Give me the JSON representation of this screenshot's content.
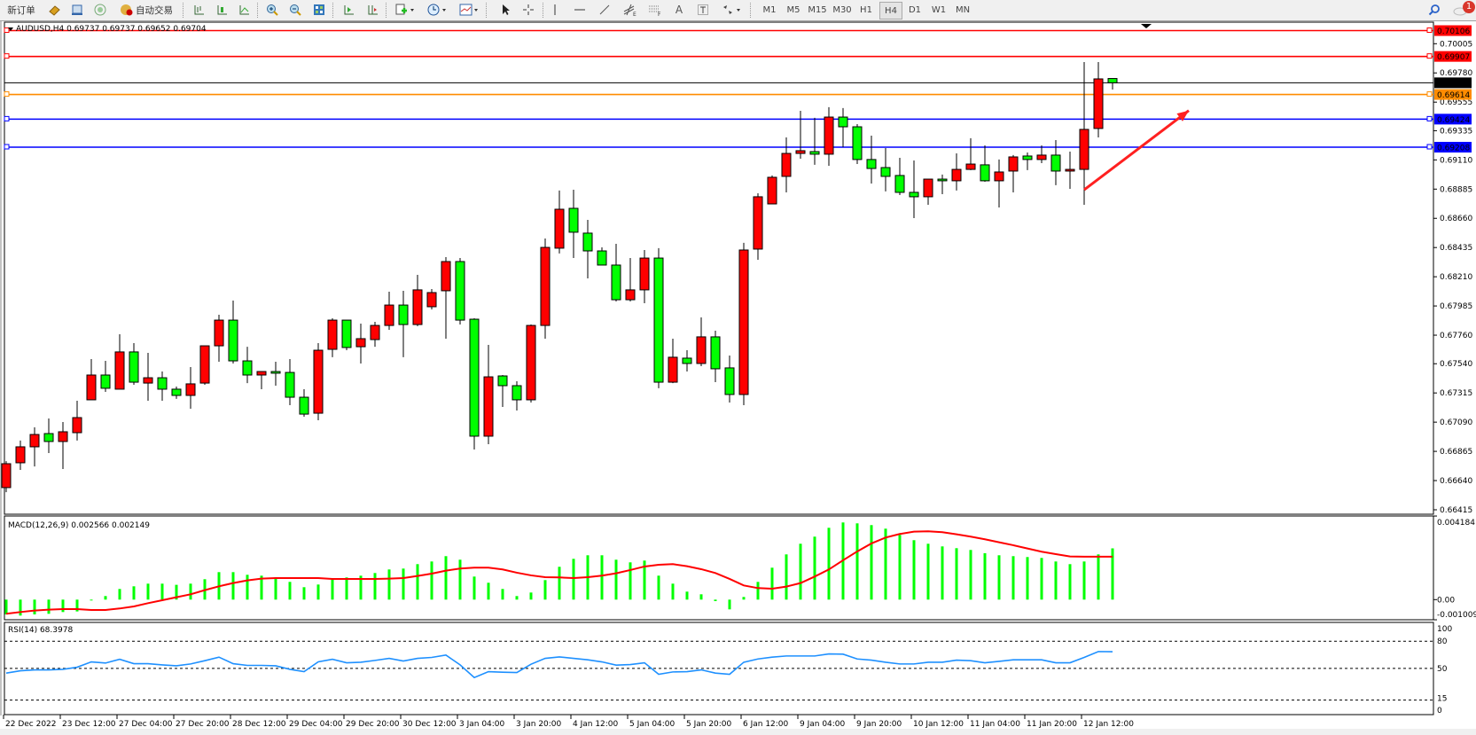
{
  "toolbar": {
    "new_order": "新订单",
    "auto_trading": "自动交易",
    "periods": [
      "M1",
      "M5",
      "M15",
      "M30",
      "H1",
      "H4",
      "D1",
      "W1",
      "MN"
    ],
    "active_period": "H4",
    "notification_count": "1",
    "icons": [
      "new-order-icon",
      "gold-icon",
      "market-watch-icon",
      "signal-icon",
      "auto-trading-icon",
      "bar-chart-icon",
      "candlestick-icon",
      "line-chart-icon",
      "zoom-in-icon",
      "zoom-out-icon",
      "tile-windows-icon",
      "autoscroll-icon",
      "chart-shift-icon",
      "template-icon",
      "clock-icon",
      "indicators-icon",
      "cursor-icon",
      "crosshair-icon",
      "vertical-line-icon",
      "horizontal-line-icon",
      "trendline-icon",
      "fibo-expansion-icon",
      "fibo-fan-icon",
      "text-icon",
      "text-label-icon",
      "arrows-icon",
      "search-icon",
      "notification-icon"
    ]
  },
  "chart_header": "AUDUSD,H4  0.69737 0.69737 0.69652 0.69704",
  "colors": {
    "bull": "#ff0000",
    "bear": "#00ff00",
    "macd_hist": "#00ff00",
    "macd_signal": "#ff0000",
    "rsi": "#1e90ff",
    "orange_line": "#ff8c00",
    "blue_line": "#0000ff",
    "red_line": "#ff0000"
  },
  "chart_data": [
    {
      "type": "candlestick",
      "symbol": "AUDUSD",
      "timeframe": "H4",
      "ylim": [
        0.66415,
        0.7018
      ],
      "y_ticks": [
        "0.70005",
        "0.69780",
        "0.69555",
        "0.69335",
        "0.69110",
        "0.68885",
        "0.68660",
        "0.68435",
        "0.68210",
        "0.67985",
        "0.67760",
        "0.67540",
        "0.67315",
        "0.67090",
        "0.66865",
        "0.66640",
        "0.66415"
      ],
      "x_tick_labels": [
        "22 Dec 2022",
        "23 Dec 12:00",
        "27 Dec 04:00",
        "27 Dec 20:00",
        "28 Dec 12:00",
        "29 Dec 04:00",
        "29 Dec 20:00",
        "30 Dec 12:00",
        "3 Jan 04:00",
        "3 Jan 20:00",
        "4 Jan 12:00",
        "5 Jan 04:00",
        "5 Jan 20:00",
        "6 Jan 12:00",
        "9 Jan 04:00",
        "9 Jan 20:00",
        "10 Jan 12:00",
        "11 Jan 04:00",
        "11 Jan 20:00",
        "12 Jan 12:00"
      ],
      "ohlc": [
        [
          0.66586,
          0.6679,
          0.66551,
          0.6677
        ],
        [
          0.66777,
          0.66948,
          0.66722,
          0.669
        ],
        [
          0.669,
          0.6705,
          0.66749,
          0.66995
        ],
        [
          0.67002,
          0.67118,
          0.66852,
          0.66941
        ],
        [
          0.66941,
          0.67091,
          0.66729,
          0.67016
        ],
        [
          0.67009,
          0.67255,
          0.66948,
          0.67125
        ],
        [
          0.67262,
          0.67576,
          0.67262,
          0.67453
        ],
        [
          0.67453,
          0.67562,
          0.67323,
          0.67351
        ],
        [
          0.67344,
          0.67767,
          0.67344,
          0.67631
        ],
        [
          0.67631,
          0.67699,
          0.67378,
          0.67398
        ],
        [
          0.67391,
          0.67624,
          0.67255,
          0.67432
        ],
        [
          0.67432,
          0.6748,
          0.67255,
          0.67344
        ],
        [
          0.67344,
          0.67364,
          0.67269,
          0.67296
        ],
        [
          0.67296,
          0.67514,
          0.67193,
          0.67385
        ],
        [
          0.67391,
          0.67678,
          0.67378,
          0.67678
        ],
        [
          0.67678,
          0.67917,
          0.67555,
          0.67876
        ],
        [
          0.67876,
          0.68027,
          0.67542,
          0.67562
        ],
        [
          0.67562,
          0.67671,
          0.67391,
          0.67453
        ],
        [
          0.67453,
          0.6748,
          0.67344,
          0.6748
        ],
        [
          0.6748,
          0.67555,
          0.67371,
          0.67467
        ],
        [
          0.67473,
          0.67576,
          0.67221,
          0.67282
        ],
        [
          0.67282,
          0.67344,
          0.67132,
          0.67152
        ],
        [
          0.67159,
          0.67699,
          0.67105,
          0.67644
        ],
        [
          0.67651,
          0.6789,
          0.6759,
          0.67876
        ],
        [
          0.67876,
          0.67876,
          0.67644,
          0.67665
        ],
        [
          0.67671,
          0.67849,
          0.67542,
          0.67733
        ],
        [
          0.67726,
          0.67863,
          0.67671,
          0.67835
        ],
        [
          0.67835,
          0.68095,
          0.67801,
          0.67992
        ],
        [
          0.67992,
          0.68102,
          0.6759,
          0.67842
        ],
        [
          0.67842,
          0.68225,
          0.67829,
          0.68109
        ],
        [
          0.67979,
          0.68115,
          0.67958,
          0.68088
        ],
        [
          0.68102,
          0.68361,
          0.67733,
          0.68327
        ],
        [
          0.68327,
          0.68354,
          0.67842,
          0.67876
        ],
        [
          0.67883,
          0.6789,
          0.66879,
          0.66982
        ],
        [
          0.66982,
          0.67685,
          0.6692,
          0.67439
        ],
        [
          0.67446,
          0.67453,
          0.67207,
          0.67371
        ],
        [
          0.67371,
          0.67405,
          0.6718,
          0.67262
        ],
        [
          0.67262,
          0.67842,
          0.67241,
          0.67835
        ],
        [
          0.67835,
          0.68505,
          0.67733,
          0.68436
        ],
        [
          0.6843,
          0.68874,
          0.68389,
          0.6873
        ],
        [
          0.68737,
          0.6888,
          0.68354,
          0.68553
        ],
        [
          0.68546,
          0.68648,
          0.68197,
          0.68409
        ],
        [
          0.68409,
          0.68436,
          0.683,
          0.683
        ],
        [
          0.683,
          0.68464,
          0.6802,
          0.68033
        ],
        [
          0.68033,
          0.68354,
          0.6802,
          0.68109
        ],
        [
          0.68109,
          0.68416,
          0.68006,
          0.68354
        ],
        [
          0.68354,
          0.6843,
          0.67351,
          0.67398
        ],
        [
          0.67398,
          0.67733,
          0.67391,
          0.6759
        ],
        [
          0.67583,
          0.67644,
          0.6748,
          0.67542
        ],
        [
          0.67542,
          0.67897,
          0.67521,
          0.67747
        ],
        [
          0.67747,
          0.67794,
          0.67398,
          0.67501
        ],
        [
          0.67508,
          0.67603,
          0.67241,
          0.67303
        ],
        [
          0.67303,
          0.68471,
          0.67221,
          0.68416
        ],
        [
          0.68423,
          0.68853,
          0.68341,
          0.68826
        ],
        [
          0.68771,
          0.6899,
          0.68771,
          0.68976
        ],
        [
          0.68983,
          0.69283,
          0.6886,
          0.6916
        ],
        [
          0.6916,
          0.69488,
          0.69119,
          0.69181
        ],
        [
          0.69174,
          0.69434,
          0.69072,
          0.69154
        ],
        [
          0.69154,
          0.69516,
          0.69065,
          0.6944
        ],
        [
          0.6944,
          0.69509,
          0.69208,
          0.69365
        ],
        [
          0.69365,
          0.69386,
          0.69078,
          0.69113
        ],
        [
          0.69113,
          0.69297,
          0.68928,
          0.69044
        ],
        [
          0.69051,
          0.69201,
          0.68867,
          0.68983
        ],
        [
          0.6899,
          0.69126,
          0.68839,
          0.6886
        ],
        [
          0.6886,
          0.69106,
          0.68662,
          0.68826
        ],
        [
          0.68826,
          0.68962,
          0.68764,
          0.68962
        ],
        [
          0.68962,
          0.68997,
          0.68846,
          0.68949
        ],
        [
          0.68949,
          0.6916,
          0.68874,
          0.69037
        ],
        [
          0.69037,
          0.69277,
          0.69031,
          0.69078
        ],
        [
          0.69072,
          0.69222,
          0.68942,
          0.68949
        ],
        [
          0.68949,
          0.69113,
          0.68744,
          0.69017
        ],
        [
          0.69024,
          0.69147,
          0.6886,
          0.69133
        ],
        [
          0.6914,
          0.69167,
          0.69031,
          0.69113
        ],
        [
          0.69113,
          0.69222,
          0.69085,
          0.69147
        ],
        [
          0.69147,
          0.69263,
          0.68915,
          0.69024
        ],
        [
          0.69024,
          0.69174,
          0.68887,
          0.69037
        ],
        [
          0.69037,
          0.69864,
          0.68764,
          0.69345
        ],
        [
          0.69352,
          0.69864,
          0.69283,
          0.69734
        ],
        [
          0.69737,
          0.69737,
          0.69652,
          0.69704
        ]
      ],
      "current_price": {
        "value": 0.69704,
        "label": "0.69704"
      },
      "horizontal_lines": [
        {
          "value": 0.70106,
          "label": "0.70106",
          "color": "#ff0000"
        },
        {
          "value": 0.69907,
          "label": "0.69907",
          "color": "#ff0000"
        },
        {
          "value": 0.69614,
          "label": "0.69614",
          "color": "#ff8c00"
        },
        {
          "value": 0.69424,
          "label": "0.69424",
          "color": "#0000ff"
        },
        {
          "value": 0.69208,
          "label": "0.69208",
          "color": "#0000ff"
        }
      ],
      "annotation": {
        "type": "arrow",
        "color": "#ff2020",
        "from_candle": 76,
        "from_price": 0.6888,
        "to_candle": 84,
        "to_price": 0.6949
      }
    },
    {
      "type": "bar+line",
      "title": "MACD(12,26,9) 0.002566 0.002149",
      "ylim": [
        -0.001009,
        0.004184
      ],
      "y_ticks": [
        "0.004184",
        "0.00",
        "-0.001009"
      ],
      "histogram": [
        -0.00074,
        -0.000799,
        -0.00074,
        -0.00071,
        -0.000622,
        -0.000592,
        -4.4e-05,
        0.000178,
        0.000533,
        0.000666,
        0.000799,
        0.000799,
        0.00074,
        0.000799,
        0.001021,
        0.001376,
        0.001376,
        0.001243,
        0.001199,
        0.001066,
        0.000888,
        0.000622,
        0.000755,
        0.001066,
        0.00111,
        0.001199,
        0.001332,
        0.00151,
        0.001554,
        0.001776,
        0.001909,
        0.002176,
        0.001998,
        0.001154,
        0.000844,
        0.000533,
        0.000178,
        0.000355,
        0.000977,
        0.001643,
        0.002042,
        0.00222,
        0.00222,
        0.001998,
        0.001865,
        0.001954,
        0.001199,
        0.000799,
        0.0004,
        0.000266,
        -7.4e-05,
        -0.000488,
        0.000133,
        0.000888,
        0.001598,
        0.002264,
        0.002797,
        0.003152,
        0.003596,
        0.003863,
        0.003818,
        0.00373,
        0.003552,
        0.003241,
        0.002975,
        0.002797,
        0.002664,
        0.002575,
        0.002486,
        0.002324,
        0.00222,
        0.002176,
        0.002131,
        0.002087,
        0.001909,
        0.001776,
        0.001909,
        0.002264,
        0.002566
      ],
      "signal": [
        -0.00071,
        -0.000622,
        -0.000548,
        -0.000503,
        -0.000474,
        -0.000474,
        -0.000518,
        -0.000518,
        -0.000444,
        -0.00034,
        -0.000178,
        -3e-05,
        0.000118,
        0.000266,
        0.000474,
        0.000666,
        0.000829,
        0.000962,
        0.001051,
        0.00108,
        0.00108,
        0.00108,
        0.00108,
        0.001036,
        0.001036,
        0.001036,
        0.001036,
        0.001051,
        0.00108,
        0.001184,
        0.001302,
        0.00145,
        0.001554,
        0.001598,
        0.001598,
        0.00151,
        0.001347,
        0.001214,
        0.001125,
        0.00111,
        0.00108,
        0.001125,
        0.001199,
        0.001317,
        0.00148,
        0.001658,
        0.001746,
        0.001776,
        0.001672,
        0.001524,
        0.001332,
        0.001036,
        0.00071,
        0.000577,
        0.000548,
        0.000651,
        0.000829,
        0.001154,
        0.00151,
        0.001968,
        0.002412,
        0.002812,
        0.003108,
        0.003286,
        0.003404,
        0.003419,
        0.003374,
        0.003271,
        0.003152,
        0.003019,
        0.002871,
        0.002723,
        0.00256,
        0.002398,
        0.002279,
        0.002161,
        0.002149,
        0.002149,
        0.002149
      ]
    },
    {
      "type": "line",
      "title": "RSI(14) 68.3978",
      "ylim": [
        0,
        100
      ],
      "y_ticks": [
        "100",
        "80",
        "50",
        "15",
        "0"
      ],
      "levels": [
        80,
        50,
        15
      ],
      "values": [
        44.8,
        47.4,
        48.4,
        48.4,
        49.0,
        51.3,
        57.2,
        55.9,
        60.1,
        55.2,
        55.2,
        53.9,
        52.9,
        54.9,
        58.5,
        62.4,
        55.2,
        53.3,
        53.3,
        52.9,
        49.0,
        46.4,
        57.2,
        60.1,
        56.2,
        56.8,
        58.8,
        61.1,
        58.2,
        61.1,
        62.1,
        64.7,
        53.9,
        39.9,
        46.4,
        45.8,
        45.4,
        54.6,
        61.1,
        62.7,
        61.1,
        59.5,
        57.2,
        53.6,
        54.2,
        56.2,
        43.5,
        46.1,
        46.4,
        48.4,
        44.8,
        43.5,
        56.8,
        60.4,
        62.4,
        63.7,
        63.7,
        63.7,
        66.0,
        65.7,
        60.4,
        59.1,
        56.8,
        54.9,
        54.9,
        56.8,
        56.8,
        59.1,
        58.5,
        56.2,
        57.8,
        59.5,
        59.5,
        59.5,
        56.2,
        56.2,
        62.1,
        68.6,
        68.4
      ]
    }
  ]
}
